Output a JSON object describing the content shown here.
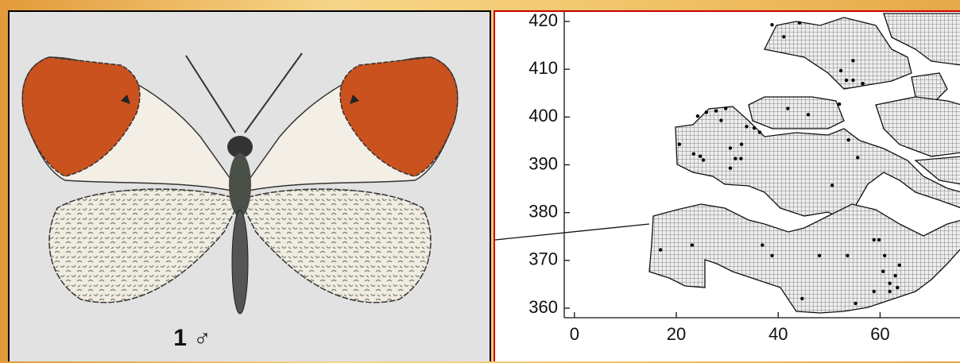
{
  "figure": {
    "label": "1 ♂"
  },
  "chart_data": {
    "type": "scatter",
    "x": [
      20.6,
      23.4,
      24.7,
      25.3,
      24.2,
      25.9,
      27.8,
      29.7,
      28.8,
      30.6,
      31.6,
      32.7,
      30.6,
      32.8,
      33.8,
      35.3,
      36.4,
      41.9,
      45.9,
      52,
      53.8,
      55.6,
      50.6,
      38.8,
      41.1,
      44.2,
      52.3,
      53.4,
      54.7,
      56.6,
      54.7,
      16.9,
      23.1,
      36.9,
      38.8,
      48.1,
      53.6,
      58.8,
      59.8,
      60.9,
      44.7,
      55.2,
      60.6,
      61.9,
      63,
      63.4,
      61.9,
      63.8,
      58.8
    ],
    "y": [
      394.3,
      392.3,
      391.8,
      391,
      400.2,
      401,
      401.3,
      401.8,
      399.3,
      393.5,
      391.3,
      391.3,
      389.3,
      394.3,
      398,
      397.7,
      396.8,
      401.8,
      400.5,
      402.7,
      395.2,
      391.5,
      385.7,
      419.3,
      416.8,
      419.7,
      409.7,
      407.7,
      407.7,
      407,
      411.8,
      372.2,
      373.2,
      373.2,
      371,
      371,
      371,
      374.3,
      374.3,
      371,
      362,
      361,
      367.7,
      365.2,
      366.8,
      364.3,
      363.5,
      369,
      363.5
    ],
    "xlim": [
      -2,
      76
    ],
    "ylim": [
      358,
      422
    ],
    "xticks": [
      0,
      20,
      40,
      60
    ],
    "yticks": [
      360,
      370,
      380,
      390,
      400,
      410,
      420
    ],
    "color": "#000000"
  }
}
